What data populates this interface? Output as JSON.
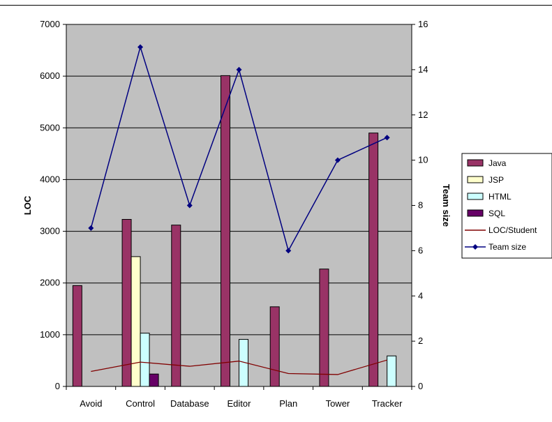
{
  "chart_data": {
    "type": "bar",
    "categories": [
      "Avoid",
      "Control",
      "Database",
      "Editor",
      "Plan",
      "Tower",
      "Tracker"
    ],
    "ylabel": "LOC",
    "y2label": "Team size",
    "ylim": [
      0,
      7000
    ],
    "y2lim": [
      0,
      16
    ],
    "yticks": [
      "0",
      "1000",
      "2000",
      "3000",
      "4000",
      "5000",
      "6000",
      "7000"
    ],
    "y2ticks": [
      "0",
      "2",
      "4",
      "6",
      "8",
      "10",
      "12",
      "14",
      "16"
    ],
    "grid": true,
    "legend_position": "right",
    "plot_background": "#c0c0c0",
    "series": [
      {
        "name": "Java",
        "kind": "bar",
        "color": "#993366",
        "values": [
          1950,
          3230,
          3120,
          6010,
          1540,
          2270,
          4900
        ]
      },
      {
        "name": "JSP",
        "kind": "bar",
        "color": "#ffffcc",
        "values": [
          0,
          2510,
          0,
          0,
          0,
          0,
          0
        ]
      },
      {
        "name": "HTML",
        "kind": "bar",
        "color": "#ccffff",
        "values": [
          0,
          1030,
          0,
          910,
          0,
          0,
          590
        ]
      },
      {
        "name": "SQL",
        "kind": "bar",
        "color": "#660066",
        "values": [
          0,
          240,
          0,
          0,
          0,
          0,
          0
        ]
      },
      {
        "name": "LOC/Student",
        "kind": "line",
        "axis": "left",
        "color": "#800000",
        "values": [
          290,
          470,
          390,
          490,
          250,
          230,
          510
        ]
      },
      {
        "name": "Team size",
        "kind": "line",
        "axis": "right",
        "marker": "diamond",
        "color": "#000080",
        "values": [
          7,
          15,
          8,
          14,
          6,
          10,
          11
        ]
      }
    ]
  }
}
